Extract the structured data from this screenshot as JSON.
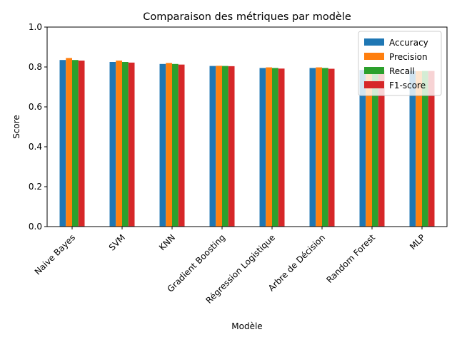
{
  "chart_data": {
    "type": "bar",
    "title": "Comparaison des métriques par modèle",
    "xlabel": "Modèle",
    "ylabel": "Score",
    "ylim": [
      0,
      1.0
    ],
    "yticks": [
      "0.0",
      "0.2",
      "0.4",
      "0.6",
      "0.8",
      "1.0"
    ],
    "grid": false,
    "legend_position": "top-right",
    "categories": [
      "Naive Bayes",
      "SVM",
      "KNN",
      "Gradient Boosting",
      "Régression Logistique",
      "Arbre de Décision",
      "Random Forest",
      "MLP"
    ],
    "series": [
      {
        "name": "Accuracy",
        "color": "#1f77b4",
        "values": [
          0.835,
          0.825,
          0.815,
          0.805,
          0.795,
          0.795,
          0.785,
          0.78
        ]
      },
      {
        "name": "Precision",
        "color": "#ff7f0e",
        "values": [
          0.845,
          0.832,
          0.82,
          0.806,
          0.798,
          0.798,
          0.786,
          0.779
        ]
      },
      {
        "name": "Recall",
        "color": "#2ca02c",
        "values": [
          0.835,
          0.825,
          0.815,
          0.805,
          0.795,
          0.795,
          0.785,
          0.78
        ]
      },
      {
        "name": "F1-score",
        "color": "#d62728",
        "values": [
          0.832,
          0.822,
          0.812,
          0.804,
          0.792,
          0.791,
          0.784,
          0.78
        ]
      }
    ]
  }
}
